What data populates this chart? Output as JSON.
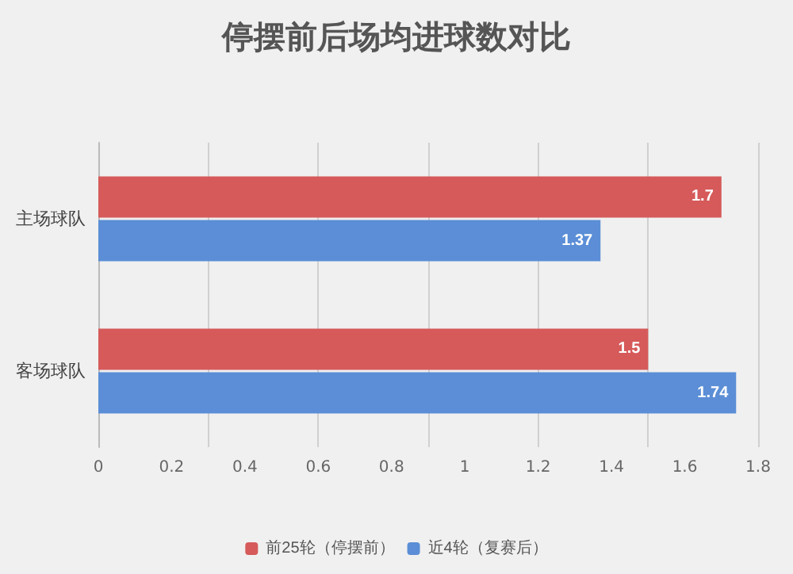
{
  "chart_data": {
    "type": "bar",
    "title": "停摆前后场均进球数对比",
    "orientation": "horizontal",
    "categories": [
      "主场球队",
      "客场球队"
    ],
    "series": [
      {
        "name": "前25轮（停摆前）",
        "color": "#d65a5a",
        "values": [
          1.7,
          1.5
        ]
      },
      {
        "name": "近4轮（复赛后）",
        "color": "#5b8ed6",
        "values": [
          1.37,
          1.74
        ]
      }
    ],
    "xlim": [
      0,
      1.8
    ],
    "xticks": [
      0,
      0.2,
      0.4,
      0.6,
      0.8,
      1,
      1.2,
      1.4,
      1.6,
      1.8
    ],
    "grid": "x",
    "legend": "bottom",
    "data_labels": true
  }
}
